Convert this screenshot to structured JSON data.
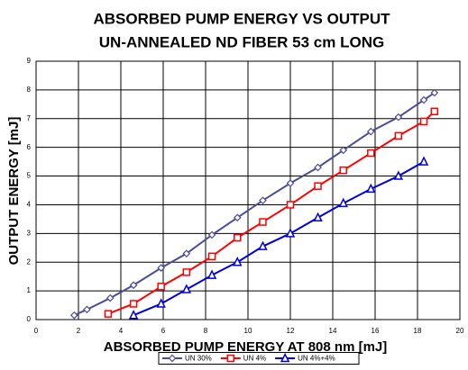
{
  "chart_data": {
    "type": "line",
    "title": "ABSORBED PUMP ENERGY VS OUTPUT",
    "subtitle": "UN-ANNEALED ND FIBER 53 cm LONG",
    "x_label": "ABSORBED PUMP ENERGY AT 808 nm [mJ]",
    "y_label": "OUTPUT ENERGY [mJ]",
    "xlim": [
      0,
      20
    ],
    "ylim": [
      0,
      9
    ],
    "xticks": [
      0,
      2,
      4,
      6,
      8,
      10,
      12,
      14,
      16,
      18,
      20
    ],
    "yticks": [
      0,
      1,
      2,
      3,
      4,
      5,
      6,
      7,
      8,
      9
    ],
    "grid": true,
    "legend": "bottom",
    "series": [
      {
        "name": "UN 30%",
        "color": "#4b4b9c",
        "marker": "diamond",
        "x": [
          1.8,
          2.4,
          3.5,
          4.6,
          5.9,
          7.1,
          8.3,
          9.5,
          10.7,
          12,
          13.3,
          14.5,
          15.8,
          17.1,
          18.3,
          18.8
        ],
        "values": [
          0.15,
          0.35,
          0.75,
          1.2,
          1.8,
          2.3,
          2.95,
          3.55,
          4.15,
          4.75,
          5.3,
          5.9,
          6.55,
          7.05,
          7.65,
          7.9
        ]
      },
      {
        "name": "UN 4%",
        "color": "#ff0000",
        "marker": "square",
        "x": [
          3.4,
          4.6,
          5.9,
          7.1,
          8.3,
          9.5,
          10.7,
          12,
          13.3,
          14.5,
          15.8,
          17.1,
          18.3,
          18.8
        ],
        "values": [
          0.2,
          0.55,
          1.15,
          1.65,
          2.2,
          2.85,
          3.4,
          4.0,
          4.65,
          5.2,
          5.8,
          6.4,
          6.9,
          7.25
        ]
      },
      {
        "name": "UN 4%+4%",
        "color": "#0000dd",
        "marker": "triangle",
        "x": [
          4.6,
          5.9,
          7.1,
          8.3,
          9.5,
          10.7,
          12,
          13.3,
          14.5,
          15.8,
          17.1,
          18.3
        ],
        "values": [
          0.15,
          0.55,
          1.05,
          1.55,
          2.0,
          2.55,
          3.0,
          3.55,
          4.05,
          4.55,
          5.0,
          5.5
        ]
      }
    ]
  }
}
